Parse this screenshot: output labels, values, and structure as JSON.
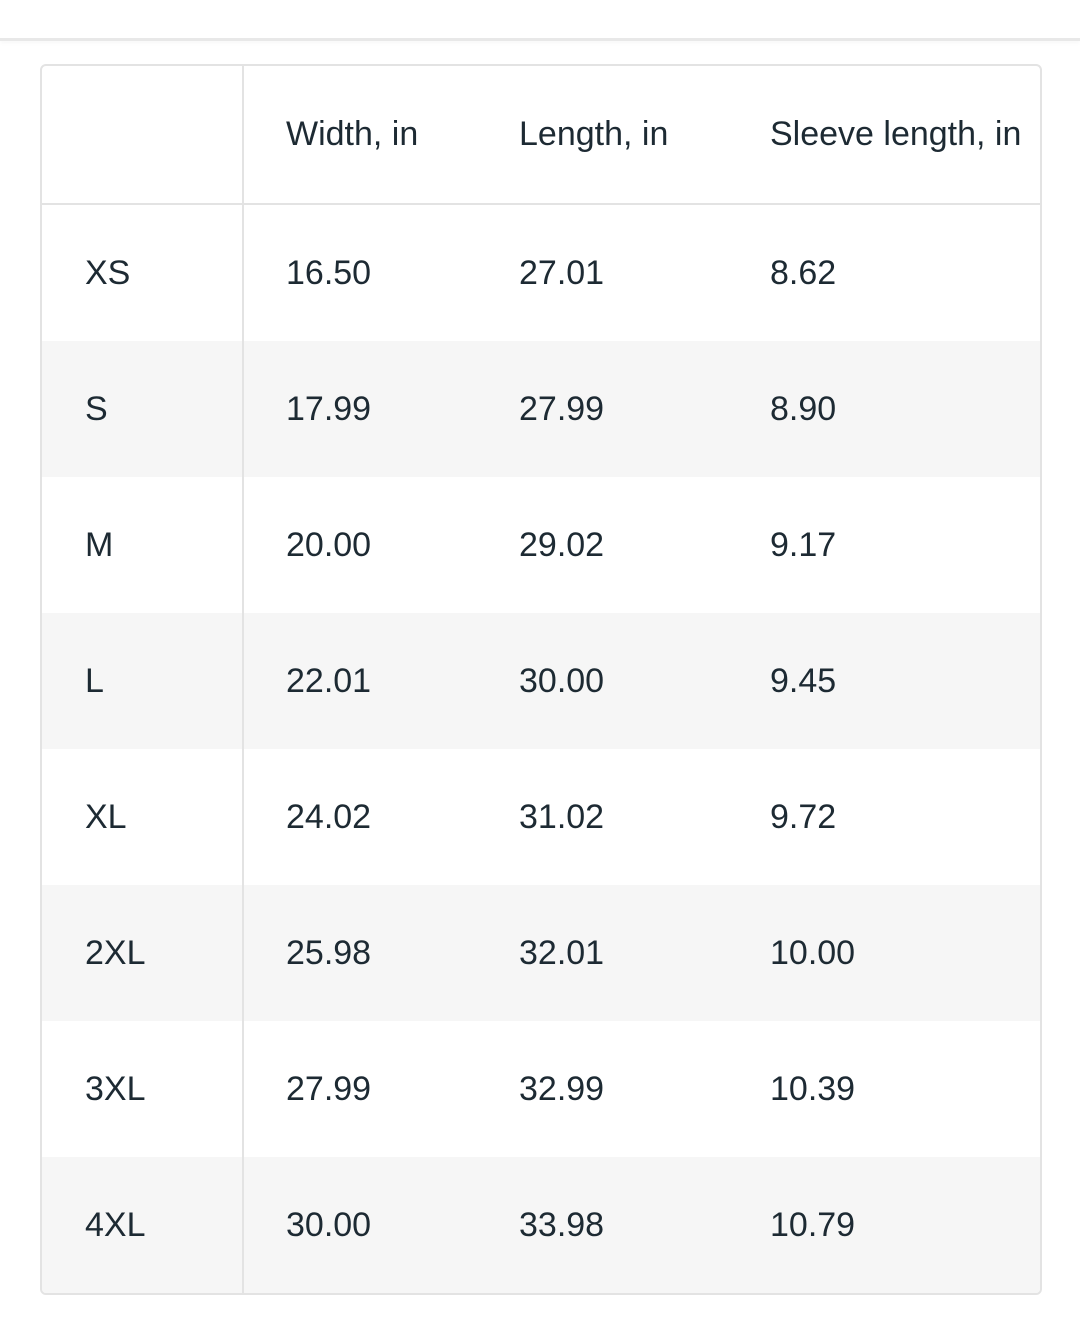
{
  "table": {
    "headers": [
      "",
      "Width, in",
      "Length, in",
      "Sleeve length, in"
    ],
    "rows": [
      [
        "XS",
        "16.50",
        "27.01",
        "8.62"
      ],
      [
        "S",
        "17.99",
        "27.99",
        "8.90"
      ],
      [
        "M",
        "20.00",
        "29.02",
        "9.17"
      ],
      [
        "L",
        "22.01",
        "30.00",
        "9.45"
      ],
      [
        "XL",
        "24.02",
        "31.02",
        "9.72"
      ],
      [
        "2XL",
        "25.98",
        "32.01",
        "10.00"
      ],
      [
        "3XL",
        "27.99",
        "32.99",
        "10.39"
      ],
      [
        "4XL",
        "30.00",
        "33.98",
        "10.79"
      ]
    ]
  },
  "colors": {
    "stripe": "#f6f6f6",
    "border": "#e3e3e3",
    "text": "#1d2a33"
  }
}
